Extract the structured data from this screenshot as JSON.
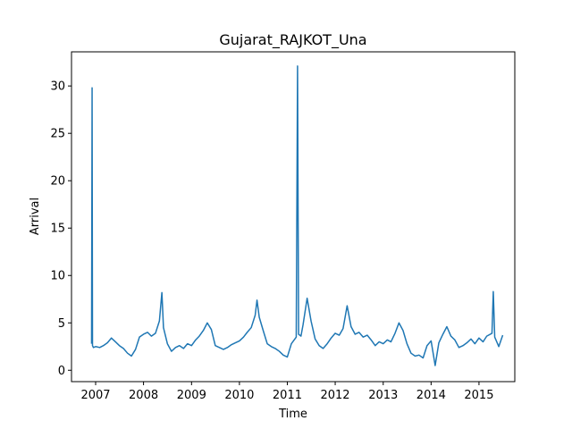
{
  "chart_data": {
    "type": "line",
    "title": "Gujarat_RAJKOT_Una",
    "xlabel": "Time",
    "ylabel": "Arrival",
    "x_ticks": [
      "2007",
      "2008",
      "2009",
      "2010",
      "2011",
      "2012",
      "2013",
      "2014",
      "2015"
    ],
    "y_ticks": [
      "0",
      "5",
      "10",
      "15",
      "20",
      "25",
      "30"
    ],
    "xlim": [
      "2006-07-01",
      "2015-10-01"
    ],
    "ylim": [
      -1.2,
      33.6
    ],
    "grid": false,
    "legend": "none",
    "series": [
      {
        "color": "#1f77b4",
        "points": [
          [
            "2006-12-01",
            2.8
          ],
          [
            "2006-12-05",
            29.8
          ],
          [
            "2006-12-08",
            2.6
          ],
          [
            "2006-12-15",
            2.4
          ],
          [
            "2007-01-01",
            2.5
          ],
          [
            "2007-02-01",
            2.4
          ],
          [
            "2007-03-01",
            2.6
          ],
          [
            "2007-04-01",
            2.9
          ],
          [
            "2007-05-01",
            3.4
          ],
          [
            "2007-06-01",
            3.0
          ],
          [
            "2007-07-01",
            2.6
          ],
          [
            "2007-08-01",
            2.3
          ],
          [
            "2007-09-01",
            1.8
          ],
          [
            "2007-10-01",
            1.5
          ],
          [
            "2007-11-01",
            2.2
          ],
          [
            "2007-12-01",
            3.5
          ],
          [
            "2008-01-01",
            3.8
          ],
          [
            "2008-02-01",
            4.0
          ],
          [
            "2008-03-01",
            3.6
          ],
          [
            "2008-04-01",
            3.9
          ],
          [
            "2008-05-01",
            5.2
          ],
          [
            "2008-05-20",
            8.2
          ],
          [
            "2008-06-01",
            4.5
          ],
          [
            "2008-07-01",
            2.8
          ],
          [
            "2008-08-01",
            2.0
          ],
          [
            "2008-09-01",
            2.4
          ],
          [
            "2008-10-01",
            2.6
          ],
          [
            "2008-11-01",
            2.3
          ],
          [
            "2008-12-01",
            2.8
          ],
          [
            "2009-01-01",
            2.6
          ],
          [
            "2009-02-01",
            3.2
          ],
          [
            "2009-03-01",
            3.6
          ],
          [
            "2009-04-01",
            4.2
          ],
          [
            "2009-05-01",
            5.0
          ],
          [
            "2009-06-01",
            4.3
          ],
          [
            "2009-07-01",
            2.6
          ],
          [
            "2009-08-01",
            2.4
          ],
          [
            "2009-09-01",
            2.2
          ],
          [
            "2009-10-01",
            2.4
          ],
          [
            "2009-11-01",
            2.7
          ],
          [
            "2009-12-01",
            2.9
          ],
          [
            "2010-01-01",
            3.1
          ],
          [
            "2010-02-01",
            3.5
          ],
          [
            "2010-03-01",
            4.0
          ],
          [
            "2010-04-01",
            4.5
          ],
          [
            "2010-05-01",
            5.8
          ],
          [
            "2010-05-15",
            7.4
          ],
          [
            "2010-06-01",
            5.6
          ],
          [
            "2010-07-01",
            4.2
          ],
          [
            "2010-08-01",
            2.8
          ],
          [
            "2010-09-01",
            2.5
          ],
          [
            "2010-10-01",
            2.3
          ],
          [
            "2010-11-01",
            2.0
          ],
          [
            "2010-12-01",
            1.6
          ],
          [
            "2011-01-01",
            1.4
          ],
          [
            "2011-02-01",
            2.8
          ],
          [
            "2011-03-10",
            3.5
          ],
          [
            "2011-03-20",
            32.1
          ],
          [
            "2011-03-28",
            3.8
          ],
          [
            "2011-04-15",
            3.6
          ],
          [
            "2011-05-01",
            4.8
          ],
          [
            "2011-06-01",
            7.6
          ],
          [
            "2011-07-01",
            5.2
          ],
          [
            "2011-08-01",
            3.3
          ],
          [
            "2011-09-01",
            2.6
          ],
          [
            "2011-10-01",
            2.3
          ],
          [
            "2011-11-01",
            2.8
          ],
          [
            "2011-12-01",
            3.4
          ],
          [
            "2012-01-01",
            3.9
          ],
          [
            "2012-02-01",
            3.7
          ],
          [
            "2012-03-01",
            4.4
          ],
          [
            "2012-04-01",
            6.8
          ],
          [
            "2012-05-01",
            4.6
          ],
          [
            "2012-06-01",
            3.8
          ],
          [
            "2012-07-01",
            4.0
          ],
          [
            "2012-08-01",
            3.5
          ],
          [
            "2012-09-01",
            3.7
          ],
          [
            "2012-10-01",
            3.2
          ],
          [
            "2012-11-01",
            2.6
          ],
          [
            "2012-12-01",
            3.0
          ],
          [
            "2013-01-01",
            2.8
          ],
          [
            "2013-02-01",
            3.2
          ],
          [
            "2013-03-01",
            3.0
          ],
          [
            "2013-04-01",
            3.9
          ],
          [
            "2013-05-01",
            5.0
          ],
          [
            "2013-06-01",
            4.2
          ],
          [
            "2013-07-01",
            2.8
          ],
          [
            "2013-08-01",
            1.8
          ],
          [
            "2013-09-01",
            1.5
          ],
          [
            "2013-10-01",
            1.6
          ],
          [
            "2013-11-01",
            1.3
          ],
          [
            "2013-12-01",
            2.6
          ],
          [
            "2014-01-01",
            3.1
          ],
          [
            "2014-02-01",
            0.5
          ],
          [
            "2014-03-01",
            2.9
          ],
          [
            "2014-04-01",
            3.8
          ],
          [
            "2014-05-01",
            4.6
          ],
          [
            "2014-06-01",
            3.6
          ],
          [
            "2014-07-01",
            3.2
          ],
          [
            "2014-08-01",
            2.4
          ],
          [
            "2014-09-01",
            2.6
          ],
          [
            "2014-10-01",
            2.9
          ],
          [
            "2014-11-01",
            3.3
          ],
          [
            "2014-12-01",
            2.8
          ],
          [
            "2015-01-01",
            3.4
          ],
          [
            "2015-02-01",
            3.0
          ],
          [
            "2015-03-01",
            3.6
          ],
          [
            "2015-04-10",
            3.9
          ],
          [
            "2015-04-20",
            8.3
          ],
          [
            "2015-05-01",
            3.5
          ],
          [
            "2015-06-01",
            2.5
          ],
          [
            "2015-07-01",
            3.7
          ]
        ]
      }
    ]
  }
}
